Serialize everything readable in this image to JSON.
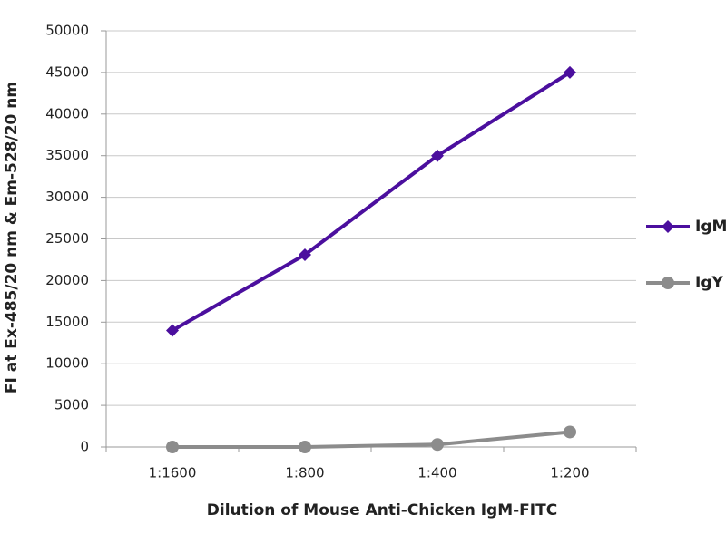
{
  "chart_data": {
    "type": "line",
    "x_label": "Dilution of Mouse Anti-Chicken IgM-FITC",
    "y_label": "FI at Ex-485/20 nm & Em-528/20 nm",
    "categories": [
      "1:1600",
      "1:800",
      "1:400",
      "1:200"
    ],
    "series": [
      {
        "name": "IgM",
        "color": "#4b0f9e",
        "marker": "diamond",
        "values": [
          14000,
          23100,
          35000,
          45000
        ]
      },
      {
        "name": "IgY",
        "color": "#8c8c8c",
        "marker": "circle",
        "values": [
          0,
          0,
          300,
          1800
        ]
      }
    ],
    "ylim": [
      0,
      50000
    ],
    "yticks": [
      0,
      5000,
      10000,
      15000,
      20000,
      25000,
      30000,
      35000,
      40000,
      45000,
      50000
    ],
    "grid": true,
    "legend": "right"
  }
}
